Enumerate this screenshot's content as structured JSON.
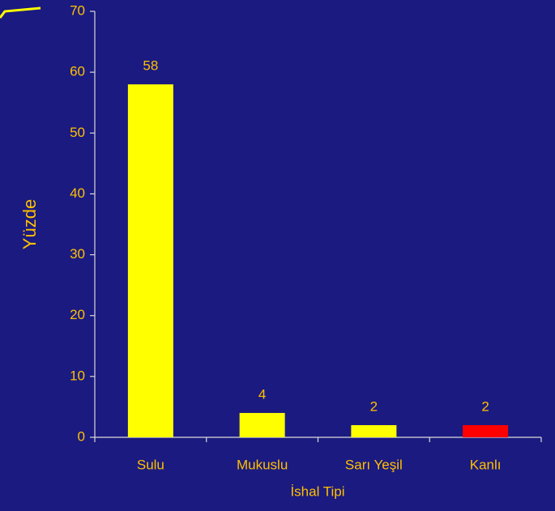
{
  "chart_data": {
    "type": "bar",
    "x_label": "İshal Tipi",
    "y_label": "Yüzde",
    "categories": [
      "Sulu",
      "Mukuslu",
      "Sarı Yeşil",
      "Kanlı"
    ],
    "values": [
      58,
      4,
      2,
      2
    ],
    "colors": [
      "#ffff00",
      "#ffff00",
      "#ffff00",
      "#ff0000"
    ],
    "ylim": [
      0,
      70
    ],
    "yticks": [
      0,
      10,
      20,
      30,
      40,
      50,
      60,
      70
    ]
  }
}
